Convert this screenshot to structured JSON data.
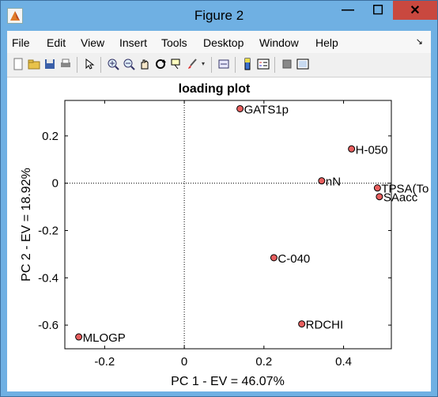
{
  "window": {
    "title": "Figure 2"
  },
  "titlebar_buttons": {
    "minimize": "—",
    "maximize": "☐",
    "close": "✕"
  },
  "menu": [
    "File",
    "Edit",
    "View",
    "Insert",
    "Tools",
    "Desktop",
    "Window",
    "Help"
  ],
  "menu_pin": "↘",
  "toolbar_icons": [
    "new-figure-icon",
    "open-file-icon",
    "save-icon",
    "print-icon",
    "pointer-icon",
    "zoom-in-icon",
    "zoom-out-icon",
    "pan-icon",
    "rotate-icon",
    "data-cursor-icon",
    "brush-icon",
    "brush-dropdown-icon",
    "link-plot-icon",
    "colorbar-icon",
    "legend-icon",
    "hide-plot-tools-icon",
    "show-plot-tools-icon"
  ],
  "colors": {
    "marker_fill": "#e85f5f",
    "marker_edge": "#000000",
    "axis": "#000000"
  },
  "chart_data": {
    "type": "scatter",
    "title": "loading plot",
    "xlabel": "PC 1 - EV = 46.07%",
    "ylabel": "PC 2 - EV = 18.92%",
    "xlim": [
      -0.3,
      0.52
    ],
    "ylim": [
      -0.7,
      0.35
    ],
    "xticks": [
      -0.2,
      0,
      0.2,
      0.4
    ],
    "xtick_labels": [
      "-0.2",
      "0",
      "0.2",
      "0.4"
    ],
    "yticks": [
      0.2,
      0,
      -0.2,
      -0.4,
      -0.6
    ],
    "ytick_labels": [
      "0.2",
      "0",
      "-0.2",
      "-0.4",
      "-0.6"
    ],
    "grid": false,
    "reference_lines": {
      "x0_dotted": true,
      "y0_dotted": true
    },
    "points": [
      {
        "label": "GATS1p",
        "x": 0.14,
        "y": 0.315
      },
      {
        "label": "H-050",
        "x": 0.42,
        "y": 0.145
      },
      {
        "label": "nN",
        "x": 0.345,
        "y": 0.01
      },
      {
        "label": "TPSA(To",
        "x": 0.485,
        "y": -0.02
      },
      {
        "label": "SAacc",
        "x": 0.49,
        "y": -0.057
      },
      {
        "label": "C-040",
        "x": 0.225,
        "y": -0.315
      },
      {
        "label": "RDCHI",
        "x": 0.295,
        "y": -0.595
      },
      {
        "label": "MLOGP",
        "x": -0.265,
        "y": -0.65
      }
    ]
  }
}
